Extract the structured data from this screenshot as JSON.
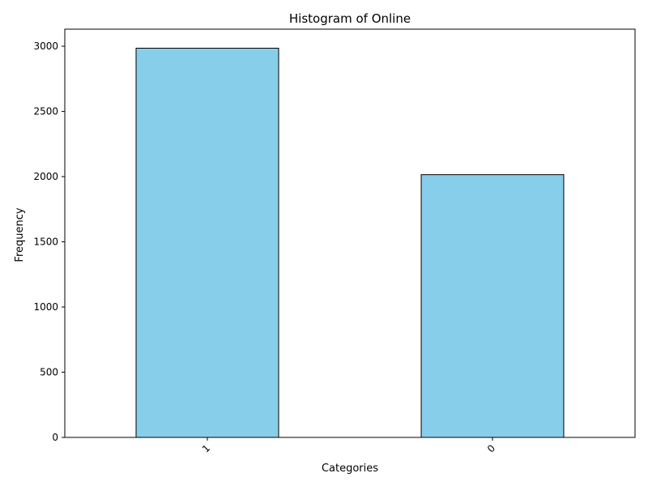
{
  "chart_data": {
    "type": "bar",
    "title": "Histogram of Online",
    "xlabel": "Categories",
    "ylabel": "Frequency",
    "categories": [
      "1",
      "0"
    ],
    "values": [
      2985,
      2015
    ],
    "ylim": [
      0,
      3131
    ],
    "yticks": [
      0,
      500,
      1000,
      1500,
      2000,
      2500,
      3000
    ],
    "bar_color": "#87ceeb",
    "edge_color": "#000000",
    "grid": false,
    "legend": "none"
  }
}
